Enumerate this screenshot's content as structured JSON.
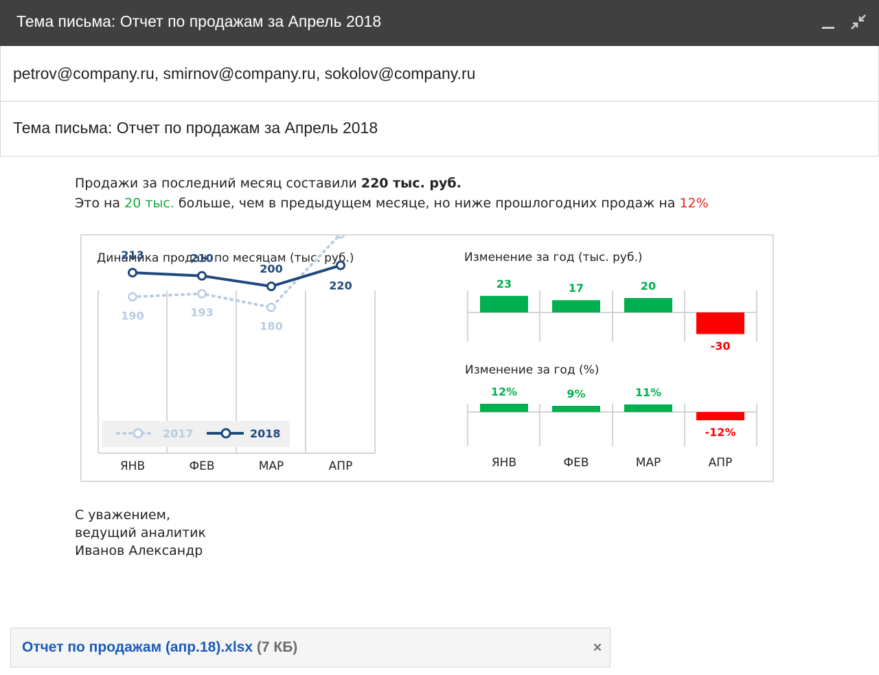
{
  "window": {
    "title": "Тема письма: Отчет по продажам за Апрель 2018"
  },
  "recipients": "petrov@company.ru, smirnov@company.ru, sokolov@company.ru",
  "subject": "Тема письма: Отчет по продажам за Апрель 2018",
  "body": {
    "line1_text": "Продажи за последний месяц составили ",
    "line1_bold": "220 тыс. руб.",
    "line2_a": "Это на ",
    "line2_green": "20 тыс.",
    "line2_b": " больше, чем в предыдущем месяце, но ниже прошлогодних продаж на ",
    "line2_red": "12%"
  },
  "colors": {
    "series_2018": "#1f497d",
    "series_2017": "#b8cce4",
    "positive": "#00b050",
    "negative": "#ff0000",
    "green_text": "#19a83c",
    "red_text": "#e8231f",
    "link": "#1a5bb8"
  },
  "chart_data": [
    {
      "type": "line",
      "title": "Динамика продаж по месяцам (тыс. руб.)",
      "categories": [
        "ЯНВ",
        "ФЕВ",
        "МАР",
        "АПР"
      ],
      "series": [
        {
          "name": "2017",
          "values": [
            190,
            193,
            180,
            250
          ],
          "style": "dotted"
        },
        {
          "name": "2018",
          "values": [
            213,
            210,
            200,
            220
          ],
          "style": "solid"
        }
      ],
      "ylim": [
        120,
        270
      ],
      "legend": "bottom",
      "grid": "vertical"
    },
    {
      "type": "bar",
      "title": "Изменение за год (тыс. руб.)",
      "categories": [
        "ЯНВ",
        "ФЕВ",
        "МАР",
        "АПР"
      ],
      "values": [
        23,
        17,
        20,
        -30
      ],
      "labels": [
        "23",
        "17",
        "20",
        "-30"
      ]
    },
    {
      "type": "bar",
      "title": "Изменение за год (%)",
      "categories": [
        "ЯНВ",
        "ФЕВ",
        "МАР",
        "АПР"
      ],
      "values": [
        12,
        9,
        11,
        -12
      ],
      "labels": [
        "12%",
        "9%",
        "11%",
        "-12%"
      ]
    }
  ],
  "signature": {
    "line1": "С уважением,",
    "line2": "ведущий аналитик",
    "line3": "Иванов Александр"
  },
  "attachment": {
    "filename": "Отчет по продажам (апр.18).xlsx",
    "size": "(7 КБ)",
    "close_icon": "close-icon"
  },
  "icons": {
    "minimize": "minimize-icon",
    "exit_fullscreen": "exit-fullscreen-icon"
  }
}
